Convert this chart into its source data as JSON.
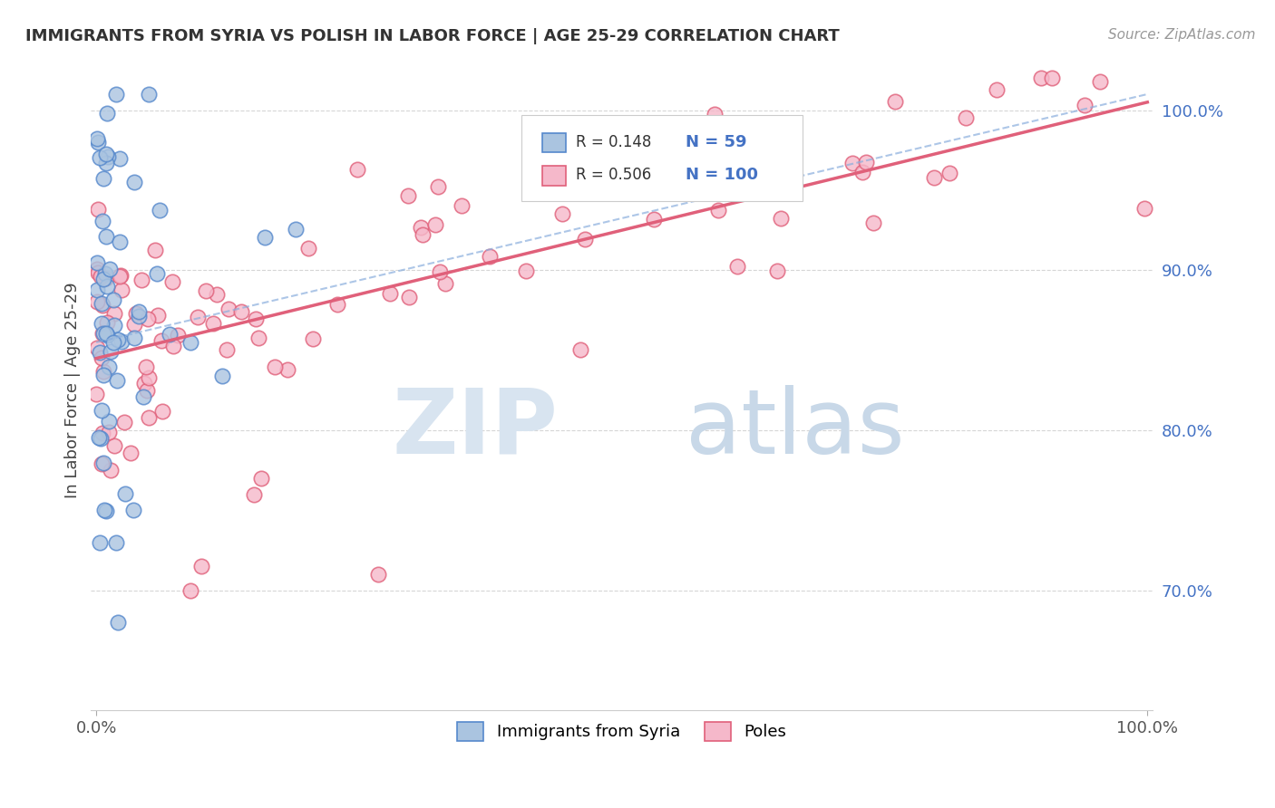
{
  "title": "IMMIGRANTS FROM SYRIA VS POLISH IN LABOR FORCE | AGE 25-29 CORRELATION CHART",
  "source_text": "Source: ZipAtlas.com",
  "ylabel": "In Labor Force | Age 25-29",
  "legend_entries": [
    {
      "label": "Immigrants from Syria",
      "R": "0.148",
      "N": "59",
      "fill_color": "#aac4e0",
      "edge_color": "#5588cc",
      "line_color": "#8aaedd"
    },
    {
      "label": "Poles",
      "R": "0.506",
      "N": "100",
      "fill_color": "#f5b8ca",
      "edge_color": "#e0607a",
      "line_color": "#e0607a"
    }
  ],
  "ylim_low": 0.625,
  "ylim_high": 1.025,
  "yticks": [
    0.7,
    0.8,
    0.9,
    1.0
  ],
  "yticklabels": [
    "70.0%",
    "80.0%",
    "90.0%",
    "100.0%"
  ],
  "xticks": [
    0.0,
    1.0
  ],
  "xticklabels": [
    "0.0%",
    "100.0%"
  ],
  "grid_color": "#cccccc",
  "watermark_zip_color": "#d8e4f0",
  "watermark_atlas_color": "#c8d8e8"
}
